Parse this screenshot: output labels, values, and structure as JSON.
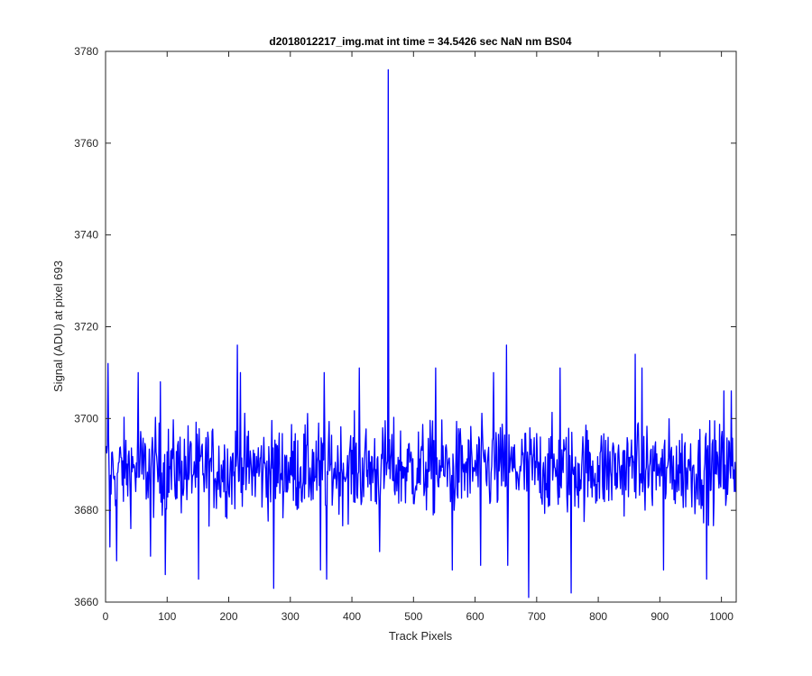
{
  "chart_data": {
    "type": "line",
    "title": "d2018012217_img.mat int time = 34.5426 sec  NaN nm BS04",
    "xlabel": "Track Pixels",
    "ylabel": "Signal (ADU) at pixel 693",
    "xlim": [
      0,
      1024
    ],
    "ylim": [
      3660,
      3780
    ],
    "xticks": [
      0,
      100,
      200,
      300,
      400,
      500,
      600,
      700,
      800,
      900,
      1000
    ],
    "yticks": [
      3660,
      3680,
      3700,
      3720,
      3740,
      3760,
      3780
    ],
    "grid": false,
    "line_color": "#0000ff",
    "noise": {
      "mean": 3689,
      "low": 3661,
      "high": 3716,
      "count": 1024
    },
    "series": [
      {
        "features": [
          {
            "x": 3,
            "y": 3712
          },
          {
            "x": 6,
            "y": 3672
          },
          {
            "x": 17,
            "y": 3669
          },
          {
            "x": 52,
            "y": 3710
          },
          {
            "x": 72,
            "y": 3670
          },
          {
            "x": 88,
            "y": 3708
          },
          {
            "x": 96,
            "y": 3666
          },
          {
            "x": 150,
            "y": 3665
          },
          {
            "x": 213,
            "y": 3716
          },
          {
            "x": 218,
            "y": 3710
          },
          {
            "x": 272,
            "y": 3663
          },
          {
            "x": 348,
            "y": 3667
          },
          {
            "x": 354,
            "y": 3710
          },
          {
            "x": 358,
            "y": 3665
          },
          {
            "x": 411,
            "y": 3711
          },
          {
            "x": 444,
            "y": 3671
          },
          {
            "x": 458,
            "y": 3776
          },
          {
            "x": 535,
            "y": 3711
          },
          {
            "x": 562,
            "y": 3667
          },
          {
            "x": 608,
            "y": 3668
          },
          {
            "x": 629,
            "y": 3710
          },
          {
            "x": 650,
            "y": 3716
          },
          {
            "x": 652,
            "y": 3668
          },
          {
            "x": 686,
            "y": 3661
          },
          {
            "x": 737,
            "y": 3711
          },
          {
            "x": 755,
            "y": 3662
          },
          {
            "x": 859,
            "y": 3714
          },
          {
            "x": 870,
            "y": 3711
          },
          {
            "x": 905,
            "y": 3667
          },
          {
            "x": 975,
            "y": 3665
          },
          {
            "x": 1003,
            "y": 3706
          },
          {
            "x": 1015,
            "y": 3706
          }
        ]
      }
    ]
  }
}
